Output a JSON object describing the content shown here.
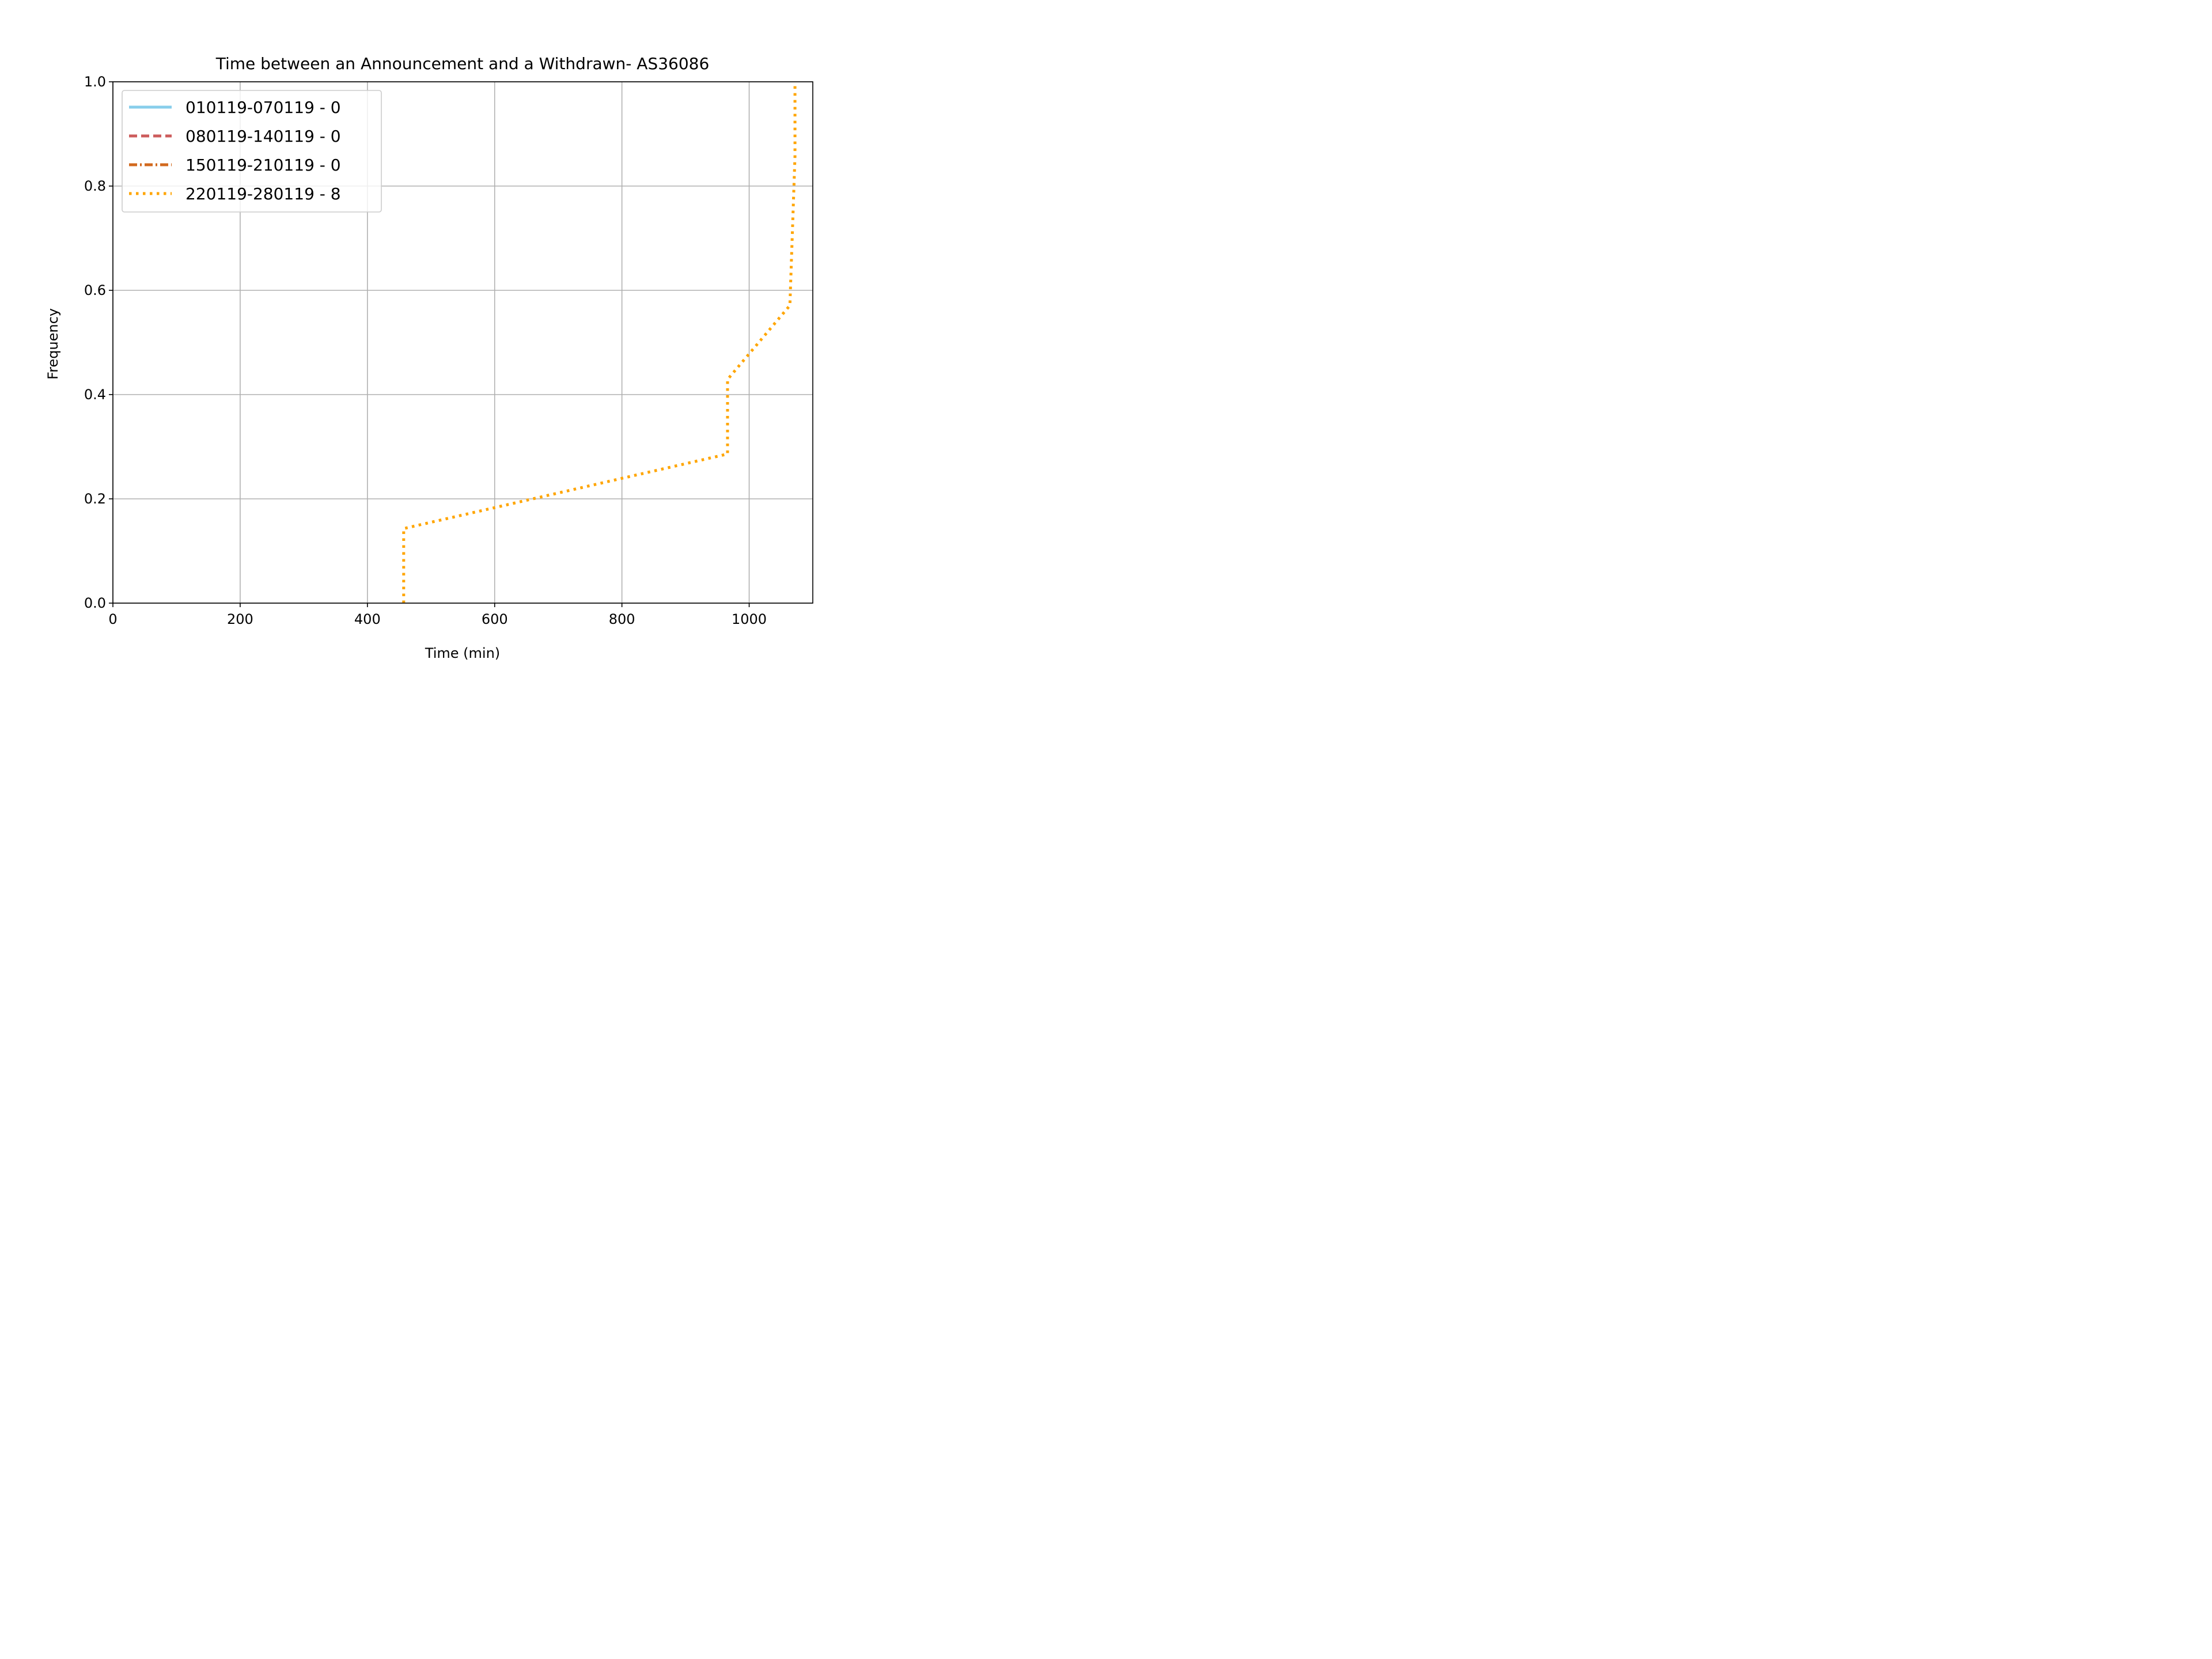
{
  "chart_data": {
    "type": "line",
    "title": "Time between an Announcement and a Withdrawn- AS36086",
    "xlabel": "Time (min)",
    "ylabel": "Frequency",
    "xlim": [
      0,
      1100
    ],
    "ylim": [
      0,
      1.0
    ],
    "xticks": [
      0,
      200,
      400,
      600,
      800,
      1000
    ],
    "yticks": [
      0.0,
      0.2,
      0.4,
      0.6,
      0.8,
      1.0
    ],
    "xtick_labels": [
      "0",
      "200",
      "400",
      "600",
      "800",
      "1000"
    ],
    "ytick_labels": [
      "0.0",
      "0.2",
      "0.4",
      "0.6",
      "0.8",
      "1.0"
    ],
    "grid": true,
    "legend_position": "top-left",
    "series": [
      {
        "name": "010119-070119 - 0",
        "color": "#87ceeb",
        "style": "solid",
        "x": [],
        "y": []
      },
      {
        "name": "080119-140119 - 0",
        "color": "#cd5c5c",
        "style": "dashed",
        "x": [],
        "y": []
      },
      {
        "name": "150119-210119 - 0",
        "color": "#d2691e",
        "style": "dashdot",
        "x": [],
        "y": []
      },
      {
        "name": "220119-280119 - 8",
        "color": "#ffa500",
        "style": "dotted",
        "x": [
          457,
          457,
          966,
          966,
          1064,
          1068,
          1072,
          1072
        ],
        "y": [
          0.0,
          0.143,
          0.286,
          0.429,
          0.571,
          0.714,
          0.857,
          1.0
        ]
      }
    ]
  }
}
